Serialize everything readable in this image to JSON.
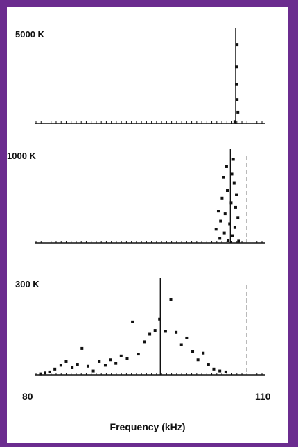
{
  "chart_data": {
    "type": "scatter",
    "xlabel": "Frequency (kHz)",
    "xlim": [
      80,
      110
    ],
    "x_tick_labels": [
      "80",
      "110"
    ],
    "panels": [
      {
        "label": "5000 K",
        "center_line_x": 106.5,
        "reference_line_x": null,
        "ylim": [
          0,
          10
        ],
        "points": [
          {
            "x": 106.7,
            "y": 8.5
          },
          {
            "x": 106.6,
            "y": 6.1
          },
          {
            "x": 106.6,
            "y": 4.2
          },
          {
            "x": 106.7,
            "y": 2.6
          },
          {
            "x": 106.8,
            "y": 1.2
          },
          {
            "x": 106.4,
            "y": 0.2
          }
        ]
      },
      {
        "label": "1000 K",
        "center_line_x": 105.8,
        "reference_line_x": 108.0,
        "ylim": [
          0,
          10
        ],
        "points": [
          {
            "x": 106.2,
            "y": 9.2
          },
          {
            "x": 105.3,
            "y": 8.4
          },
          {
            "x": 106.0,
            "y": 7.6
          },
          {
            "x": 104.9,
            "y": 7.2
          },
          {
            "x": 106.3,
            "y": 6.6
          },
          {
            "x": 105.4,
            "y": 5.8
          },
          {
            "x": 106.6,
            "y": 5.3
          },
          {
            "x": 104.7,
            "y": 4.9
          },
          {
            "x": 105.9,
            "y": 4.4
          },
          {
            "x": 106.5,
            "y": 3.9
          },
          {
            "x": 104.2,
            "y": 3.5
          },
          {
            "x": 105.1,
            "y": 3.2
          },
          {
            "x": 106.8,
            "y": 2.8
          },
          {
            "x": 104.5,
            "y": 2.4
          },
          {
            "x": 105.7,
            "y": 2.1
          },
          {
            "x": 106.4,
            "y": 1.7
          },
          {
            "x": 103.9,
            "y": 1.5
          },
          {
            "x": 105.0,
            "y": 1.1
          },
          {
            "x": 106.1,
            "y": 0.8
          },
          {
            "x": 104.4,
            "y": 0.5
          },
          {
            "x": 105.5,
            "y": 0.3
          },
          {
            "x": 106.9,
            "y": 0.2
          }
        ]
      },
      {
        "label": "300 K",
        "center_line_x": 96.5,
        "reference_line_x": 108.0,
        "ylim": [
          0,
          10
        ],
        "points": [
          {
            "x": 80.6,
            "y": 0.1
          },
          {
            "x": 81.2,
            "y": 0.2
          },
          {
            "x": 81.8,
            "y": 0.3
          },
          {
            "x": 82.5,
            "y": 0.6
          },
          {
            "x": 83.3,
            "y": 1.0
          },
          {
            "x": 84.0,
            "y": 1.4
          },
          {
            "x": 84.8,
            "y": 0.8
          },
          {
            "x": 85.5,
            "y": 1.1
          },
          {
            "x": 86.1,
            "y": 2.8
          },
          {
            "x": 86.9,
            "y": 0.9
          },
          {
            "x": 87.6,
            "y": 0.4
          },
          {
            "x": 88.4,
            "y": 1.4
          },
          {
            "x": 89.2,
            "y": 1.0
          },
          {
            "x": 89.9,
            "y": 1.6
          },
          {
            "x": 90.6,
            "y": 1.2
          },
          {
            "x": 91.3,
            "y": 2.0
          },
          {
            "x": 92.1,
            "y": 1.7
          },
          {
            "x": 92.8,
            "y": 5.6
          },
          {
            "x": 93.6,
            "y": 2.2
          },
          {
            "x": 94.4,
            "y": 3.5
          },
          {
            "x": 95.1,
            "y": 4.3
          },
          {
            "x": 95.8,
            "y": 4.7
          },
          {
            "x": 96.4,
            "y": 5.9
          },
          {
            "x": 97.2,
            "y": 4.6
          },
          {
            "x": 97.9,
            "y": 8.0
          },
          {
            "x": 98.6,
            "y": 4.5
          },
          {
            "x": 99.3,
            "y": 3.2
          },
          {
            "x": 100.0,
            "y": 3.9
          },
          {
            "x": 100.8,
            "y": 2.5
          },
          {
            "x": 101.5,
            "y": 1.6
          },
          {
            "x": 102.2,
            "y": 2.3
          },
          {
            "x": 102.9,
            "y": 1.1
          },
          {
            "x": 103.6,
            "y": 0.6
          },
          {
            "x": 104.4,
            "y": 0.4
          },
          {
            "x": 105.2,
            "y": 0.3
          }
        ]
      }
    ]
  }
}
